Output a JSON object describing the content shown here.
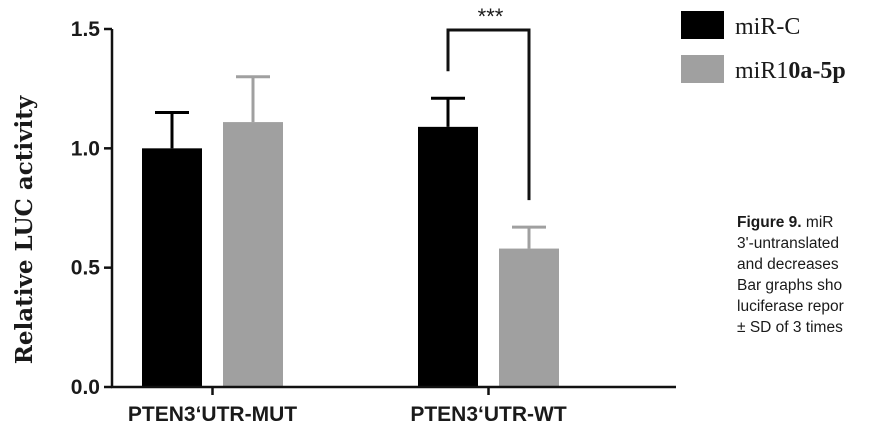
{
  "chart_data": {
    "type": "bar",
    "ylabel": "Relative LUC activity",
    "ylim": [
      0,
      1.5
    ],
    "yticks": [
      "0.0",
      "0.5",
      "1.0",
      "1.5"
    ],
    "categories": [
      "PTEN3‘UTR-MUT",
      "PTEN3‘UTR-WT"
    ],
    "series": [
      {
        "name": "miR-C",
        "color": "#000000",
        "values": [
          1.0,
          1.09
        ],
        "errors": [
          0.15,
          0.12
        ]
      },
      {
        "name": "miR10a-5p",
        "color": "#a0a0a0",
        "values": [
          1.11,
          0.58
        ],
        "errors": [
          0.19,
          0.09
        ]
      }
    ],
    "significance": {
      "category": "PTEN3‘UTR-WT",
      "label": "***"
    },
    "legend_position": "top-right"
  },
  "caption": {
    "lead": "Figure 9.",
    "text_first_line": " miR",
    "lines": [
      "3'-untranslated",
      "and decreases",
      "Bar graphs sho",
      "luciferase repor",
      "± SD of 3 times"
    ]
  }
}
